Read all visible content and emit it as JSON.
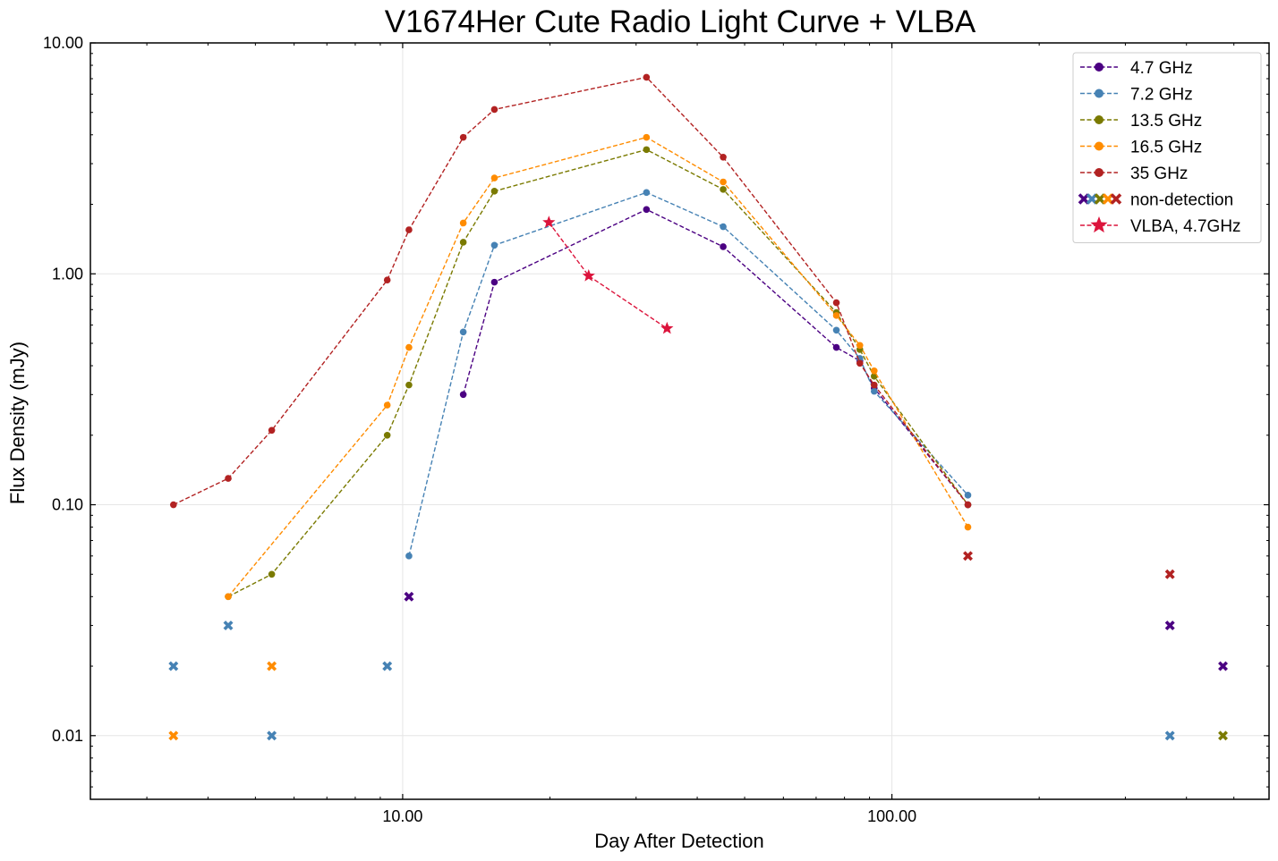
{
  "chart_data": {
    "type": "line",
    "title": "V1674Her Cute Radio Light Curve + VLBA",
    "xlabel": "Day After Detection",
    "ylabel": "Flux Density (mJy)",
    "xscale": "log",
    "yscale": "log",
    "xlim": [
      2.3,
      590
    ],
    "ylim": [
      0.0053,
      10
    ],
    "xticks": [
      10,
      100
    ],
    "xtick_labels": [
      "10.00",
      "100.00"
    ],
    "yticks": [
      0.01,
      0.1,
      1,
      10
    ],
    "ytick_labels": [
      "0.01",
      "0.10",
      "1.00",
      "10.00"
    ],
    "grid": true,
    "legend_position": "top-right",
    "series": [
      {
        "name": "4.7 GHz",
        "color": "#4b0082",
        "marker": "circle",
        "linestyle": "dashed",
        "x": [
          13.3,
          15.4,
          31.5,
          45.2,
          77.0,
          86.0,
          92.0,
          143.0
        ],
        "y": [
          0.3,
          0.92,
          1.9,
          1.31,
          0.48,
          0.42,
          0.32,
          0.1
        ]
      },
      {
        "name": "7.2 GHz",
        "color": "#4682b4",
        "marker": "circle",
        "linestyle": "dashed",
        "x": [
          10.3,
          13.3,
          15.4,
          31.5,
          45.2,
          77.0,
          86.0,
          92.0,
          143.0
        ],
        "y": [
          0.06,
          0.56,
          1.33,
          2.25,
          1.6,
          0.57,
          0.43,
          0.31,
          0.11
        ]
      },
      {
        "name": "13.5 GHz",
        "color": "#7a7a00",
        "marker": "circle",
        "linestyle": "dashed",
        "x": [
          4.4,
          5.4,
          9.3,
          10.3,
          13.3,
          15.4,
          31.5,
          45.2,
          77.0,
          86.0,
          92.0,
          143.0
        ],
        "y": [
          0.04,
          0.05,
          0.2,
          0.33,
          1.37,
          2.28,
          3.45,
          2.32,
          0.68,
          0.47,
          0.36,
          0.1
        ]
      },
      {
        "name": "16.5 GHz",
        "color": "#ff8c00",
        "marker": "circle",
        "linestyle": "dashed",
        "x": [
          4.4,
          9.3,
          10.3,
          13.3,
          15.4,
          31.5,
          45.2,
          77.0,
          86.0,
          92.0,
          143.0
        ],
        "y": [
          0.04,
          0.27,
          0.48,
          1.66,
          2.6,
          3.9,
          2.5,
          0.66,
          0.49,
          0.38,
          0.08
        ]
      },
      {
        "name": "35 GHz",
        "color": "#b22222",
        "marker": "circle",
        "linestyle": "dashed",
        "x": [
          3.4,
          4.4,
          5.4,
          9.3,
          10.3,
          13.3,
          15.4,
          31.5,
          45.2,
          77.0,
          86.0,
          92.0,
          143.0
        ],
        "y": [
          0.1,
          0.13,
          0.21,
          0.94,
          1.55,
          3.9,
          5.15,
          7.1,
          3.2,
          0.75,
          0.41,
          0.33,
          0.1
        ]
      }
    ],
    "non_detection": {
      "name": "non-detection",
      "marker": "x",
      "points": [
        {
          "x": 3.4,
          "y": 0.02,
          "color": "#4682b4"
        },
        {
          "x": 3.4,
          "y": 0.01,
          "color": "#ff8c00"
        },
        {
          "x": 4.4,
          "y": 0.03,
          "color": "#4682b4"
        },
        {
          "x": 5.4,
          "y": 0.02,
          "color": "#ff8c00"
        },
        {
          "x": 5.4,
          "y": 0.01,
          "color": "#4682b4"
        },
        {
          "x": 9.3,
          "y": 0.02,
          "color": "#4682b4"
        },
        {
          "x": 10.3,
          "y": 0.04,
          "color": "#4b0082"
        },
        {
          "x": 143.0,
          "y": 0.06,
          "color": "#b22222"
        },
        {
          "x": 370.0,
          "y": 0.05,
          "color": "#b22222"
        },
        {
          "x": 370.0,
          "y": 0.03,
          "color": "#4b0082"
        },
        {
          "x": 370.0,
          "y": 0.01,
          "color": "#4682b4"
        },
        {
          "x": 475.0,
          "y": 0.02,
          "color": "#4b0082"
        },
        {
          "x": 475.0,
          "y": 0.01,
          "color": "#7a7a00"
        }
      ]
    },
    "vlba": {
      "name": "VLBA, 4.7GHz",
      "color": "#dc143c",
      "marker": "star",
      "linestyle": "dashed",
      "x": [
        19.9,
        24.0,
        34.7
      ],
      "y": [
        1.67,
        0.98,
        0.58
      ]
    },
    "legend": [
      {
        "label": "4.7 GHz",
        "kind": "line",
        "color": "#4b0082"
      },
      {
        "label": "7.2 GHz",
        "kind": "line",
        "color": "#4682b4"
      },
      {
        "label": "13.5 GHz",
        "kind": "line",
        "color": "#7a7a00"
      },
      {
        "label": "16.5 GHz",
        "kind": "line",
        "color": "#ff8c00"
      },
      {
        "label": "35 GHz",
        "kind": "line",
        "color": "#b22222"
      },
      {
        "label": "non-detection",
        "kind": "xs",
        "colors": [
          "#4b0082",
          "#4682b4",
          "#7a7a00",
          "#ff8c00",
          "#b22222"
        ]
      },
      {
        "label": "VLBA, 4.7GHz",
        "kind": "star",
        "color": "#dc143c"
      }
    ]
  }
}
